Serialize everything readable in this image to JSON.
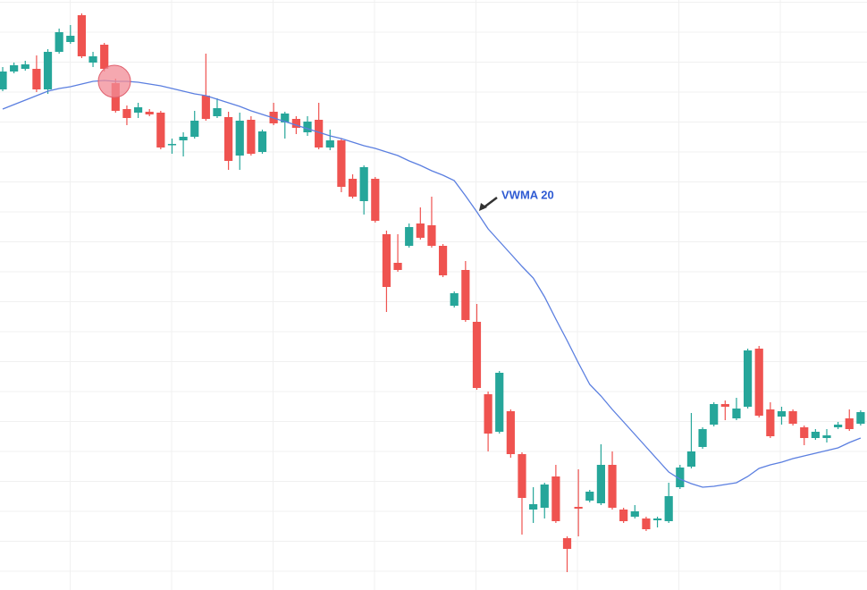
{
  "chart_data": {
    "type": "candlestick",
    "categories": [
      null,
      null,
      null,
      null,
      null,
      null,
      null,
      null,
      null,
      null,
      null,
      null,
      null,
      null,
      null,
      null,
      null,
      null,
      null,
      null,
      null,
      null,
      null,
      null,
      null,
      null,
      null,
      null,
      null,
      null,
      null,
      null,
      null,
      null,
      null,
      null,
      null,
      null,
      null,
      null,
      null,
      null,
      null,
      null,
      null,
      null,
      null,
      null,
      null,
      null,
      null,
      null,
      null,
      null,
      null,
      null,
      null,
      null,
      null,
      null,
      null,
      null,
      null,
      null,
      null,
      null,
      null,
      null,
      null,
      null,
      null,
      null,
      null,
      null,
      null,
      null,
      null
    ],
    "open": [
      560,
      580,
      583,
      583,
      560,
      602,
      613,
      643,
      590,
      610,
      567,
      538,
      534,
      535,
      534,
      498,
      503,
      507,
      553,
      530,
      529,
      486,
      526,
      490,
      535,
      523,
      527,
      512,
      526,
      495,
      503,
      460,
      435,
      460,
      398,
      366,
      385,
      410,
      408,
      385,
      318,
      358,
      300,
      219,
      177,
      200,
      152,
      90,
      92,
      127,
      58,
      93,
      100,
      97,
      140,
      90,
      82,
      80,
      78,
      77,
      115,
      138,
      160,
      185,
      208,
      192,
      205,
      270,
      202,
      194,
      200,
      182,
      170,
      170,
      182,
      192,
      186
    ],
    "high": [
      585,
      590,
      592,
      598,
      605,
      628,
      632,
      645,
      602,
      612,
      572,
      542,
      545,
      538,
      536,
      505,
      512,
      536,
      600,
      550,
      535,
      534,
      530,
      515,
      545,
      535,
      530,
      530,
      545,
      515,
      505,
      465,
      475,
      462,
      402,
      398,
      410,
      428,
      440,
      387,
      334,
      368,
      320,
      222,
      245,
      202,
      154,
      115,
      120,
      140,
      60,
      135,
      112,
      163,
      155,
      92,
      95,
      82,
      82,
      120,
      140,
      198,
      182,
      210,
      212,
      215,
      270,
      273,
      210,
      205,
      202,
      184,
      180,
      180,
      188,
      202,
      201
    ],
    "low": [
      558,
      578,
      581,
      557,
      555,
      600,
      611,
      595,
      585,
      580,
      534,
      520,
      528,
      530,
      493,
      488,
      485,
      505,
      525,
      528,
      470,
      470,
      486,
      488,
      520,
      505,
      510,
      508,
      493,
      492,
      445,
      438,
      420,
      411,
      311,
      356,
      383,
      392,
      383,
      350,
      316,
      300,
      224,
      155,
      175,
      148,
      62,
      75,
      80,
      75,
      20,
      60,
      98,
      95,
      90,
      75,
      80,
      66,
      70,
      75,
      113,
      136,
      158,
      183,
      190,
      190,
      203,
      193,
      170,
      185,
      184,
      162,
      168,
      165,
      180,
      178,
      184
    ],
    "close": [
      580,
      587,
      588,
      560,
      602,
      624,
      620,
      597,
      597,
      583,
      536,
      528,
      540,
      532,
      495,
      499,
      507,
      525,
      527,
      539,
      480,
      525,
      488,
      513,
      522,
      533,
      517,
      524,
      495,
      503,
      451,
      440,
      473,
      413,
      339,
      358,
      406,
      394,
      385,
      352,
      332,
      302,
      226,
      175,
      243,
      152,
      103,
      96,
      118,
      77,
      46,
      91,
      110,
      140,
      92,
      77,
      88,
      68,
      80,
      105,
      137,
      155,
      180,
      208,
      205,
      203,
      268,
      195,
      172,
      200,
      186,
      170,
      177,
      173,
      185,
      180,
      199
    ],
    "up_color": "#26a69a",
    "down_color": "#ef5350",
    "ylim": [
      0,
      660
    ],
    "lines": [
      {
        "name": "VWMA 20",
        "color": "#5b7fe0",
        "values": [
          538,
          543,
          548,
          553,
          558,
          561,
          563,
          566,
          569,
          570,
          569,
          569,
          568,
          566,
          564,
          561,
          558,
          555,
          553,
          549,
          545,
          541,
          536,
          532,
          528,
          524,
          520,
          516,
          512,
          508,
          505,
          501,
          497,
          494,
          490,
          486,
          480,
          475,
          469,
          464,
          458,
          441,
          423,
          404,
          390,
          376,
          362,
          349,
          328,
          303,
          279,
          254,
          230,
          217,
          202,
          188,
          174,
          160,
          146,
          132,
          124,
          119,
          115,
          116,
          118,
          120,
          127,
          136,
          140,
          143,
          147,
          150,
          153,
          156,
          159,
          165,
          170
        ]
      }
    ]
  }
}
